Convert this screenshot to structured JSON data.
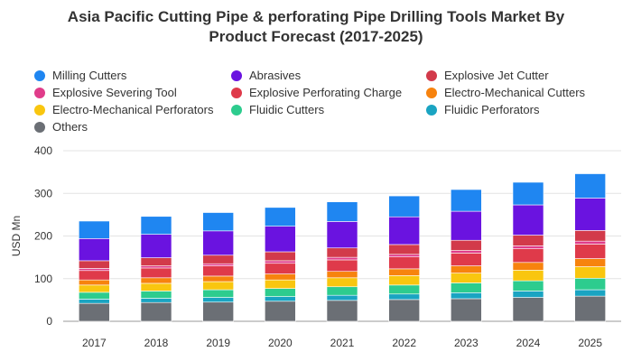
{
  "chart_data": {
    "type": "bar",
    "stacked": true,
    "title": "Asia Pacific Cutting Pipe & perforating Pipe Drilling Tools Market By Product Forecast (2017-2025)",
    "title_lines": [
      "Asia Pacific Cutting Pipe & perforating Pipe Drilling Tools Market By",
      "Product Forecast (2017-2025)"
    ],
    "xlabel": "",
    "ylabel": "USD Mn",
    "ylim": [
      0,
      400
    ],
    "yticks": [
      "0",
      "100",
      "200",
      "300",
      "400"
    ],
    "grid": true,
    "legend_position": "top",
    "categories": [
      "2017",
      "2018",
      "2019",
      "2020",
      "2021",
      "2022",
      "2023",
      "2024",
      "2025"
    ],
    "series": [
      {
        "name": "Others",
        "color": "#6b6f75",
        "values": [
          42,
          44,
          45,
          47,
          49,
          51,
          53,
          56,
          59
        ]
      },
      {
        "name": "Fluidic Perforators",
        "color": "#1aa4c2",
        "values": [
          10,
          10,
          11,
          11,
          12,
          13,
          14,
          15,
          15
        ]
      },
      {
        "name": "Fluidic Cutters",
        "color": "#2dcc8e",
        "values": [
          16,
          17,
          18,
          19,
          20,
          21,
          23,
          24,
          27
        ]
      },
      {
        "name": "Electro-Mechanical Perforators",
        "color": "#f9c60f",
        "values": [
          17,
          18,
          19,
          20,
          21,
          22,
          23,
          25,
          27
        ]
      },
      {
        "name": "Electro-Mechanical Cutters",
        "color": "#f7830e",
        "values": [
          12,
          13,
          13,
          14,
          15,
          16,
          17,
          18,
          19
        ]
      },
      {
        "name": "Explosive Perforating Charge",
        "color": "#df3a4a",
        "values": [
          22,
          23,
          24,
          25,
          27,
          28,
          30,
          32,
          34
        ]
      },
      {
        "name": "Explosive Severing Tool",
        "color": "#e03c8a",
        "values": [
          5,
          5,
          5,
          6,
          6,
          6,
          6,
          7,
          7
        ]
      },
      {
        "name": "Explosive Jet Cutter",
        "color": "#d23a4a",
        "values": [
          18,
          19,
          20,
          21,
          22,
          23,
          24,
          25,
          25
        ]
      },
      {
        "name": "Abrasives",
        "color": "#6a13e0",
        "values": [
          52,
          55,
          57,
          60,
          62,
          65,
          68,
          71,
          76
        ]
      },
      {
        "name": "Milling Cutters",
        "color": "#1f86f1",
        "values": [
          41,
          42,
          43,
          44,
          46,
          49,
          51,
          53,
          57
        ]
      }
    ],
    "legend_order": [
      "Milling Cutters",
      "Abrasives",
      "Explosive Jet Cutter",
      "Explosive Severing Tool",
      "Explosive Perforating Charge",
      "Electro-Mechanical Cutters",
      "Electro-Mechanical Perforators",
      "Fluidic Cutters",
      "Fluidic Perforators",
      "Others"
    ]
  }
}
